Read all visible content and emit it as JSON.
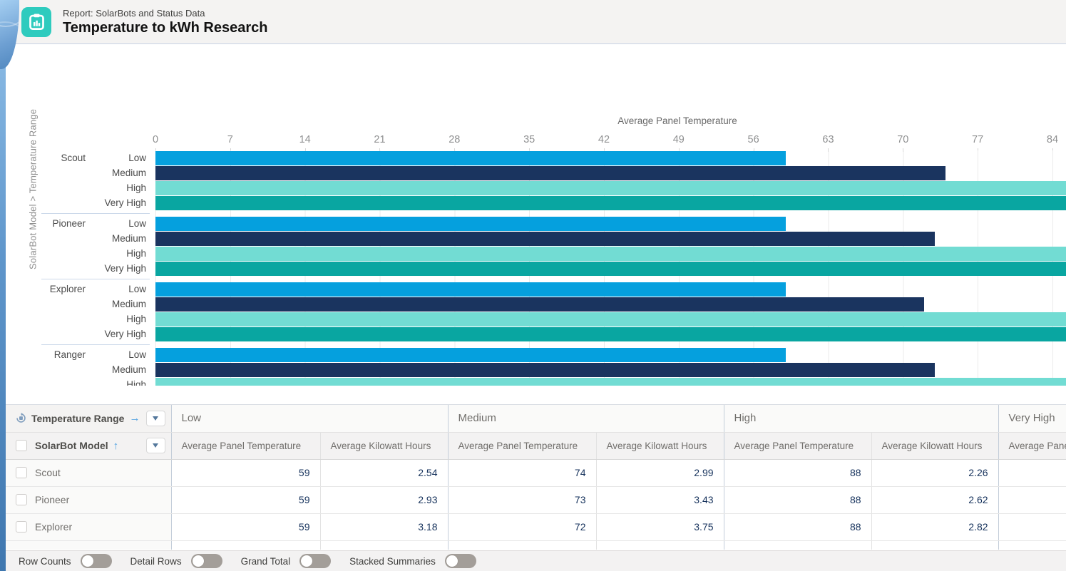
{
  "header": {
    "report_type": "Report: SolarBots and Status Data",
    "title": "Temperature to kWh Research",
    "icon_color": "#2ECBBE"
  },
  "chart_data": {
    "type": "bar",
    "orientation": "horizontal",
    "title": "Average Panel Temperature",
    "group_axis_label": "SolarBot Model > Temperature Range",
    "x_ticks": [
      0,
      7,
      14,
      21,
      28,
      35,
      42,
      49,
      56,
      63,
      70,
      77,
      84
    ],
    "x_visible_range": [
      0,
      85
    ],
    "grid": true,
    "series_colors": {
      "Low": "#05A0DE",
      "Medium": "#1A345F",
      "High": "#72DCD3",
      "Very High": "#09A6A1"
    },
    "groups": [
      {
        "model": "Scout",
        "bars": [
          {
            "range": "Low",
            "value": 59
          },
          {
            "range": "Medium",
            "value": 74
          },
          {
            "range": "High",
            "value": 88,
            "clipped_right": true
          },
          {
            "range": "Very High",
            "value": null,
            "clipped_right": true
          }
        ]
      },
      {
        "model": "Pioneer",
        "bars": [
          {
            "range": "Low",
            "value": 59
          },
          {
            "range": "Medium",
            "value": 73
          },
          {
            "range": "High",
            "value": 88,
            "clipped_right": true
          },
          {
            "range": "Very High",
            "value": null,
            "clipped_right": true
          }
        ]
      },
      {
        "model": "Explorer",
        "bars": [
          {
            "range": "Low",
            "value": 59
          },
          {
            "range": "Medium",
            "value": 72
          },
          {
            "range": "High",
            "value": 88,
            "clipped_right": true
          },
          {
            "range": "Very High",
            "value": null,
            "clipped_right": true
          }
        ]
      },
      {
        "model": "Ranger",
        "bars": [
          {
            "range": "Low",
            "value": 59
          },
          {
            "range": "Medium",
            "value": 73
          },
          {
            "range": "High",
            "value": 88,
            "clipped_right": true,
            "clipped_bottom": true
          }
        ]
      }
    ]
  },
  "table": {
    "pivot_header": {
      "label": "Temperature Range",
      "direction_arrow": "→"
    },
    "row_header": {
      "label": "SolarBot Model",
      "sort_arrow": "↑"
    },
    "column_groups": [
      {
        "label": "Low"
      },
      {
        "label": "Medium"
      },
      {
        "label": "High"
      },
      {
        "label": "Very High",
        "clipped": true
      }
    ],
    "measures": [
      "Average Panel Temperature",
      "Average Kilowatt Hours"
    ],
    "rows": [
      {
        "model": "Scout",
        "values": [
          "59",
          "2.54",
          "74",
          "2.99",
          "88",
          "2.26",
          "",
          ""
        ]
      },
      {
        "model": "Pioneer",
        "values": [
          "59",
          "2.93",
          "73",
          "3.43",
          "88",
          "2.62",
          "",
          ""
        ]
      },
      {
        "model": "Explorer",
        "values": [
          "59",
          "3.18",
          "72",
          "3.75",
          "88",
          "2.82",
          "",
          ""
        ]
      }
    ]
  },
  "footer": {
    "toggles": [
      {
        "label": "Row Counts",
        "on": false
      },
      {
        "label": "Detail Rows",
        "on": false
      },
      {
        "label": "Grand Total",
        "on": false
      },
      {
        "label": "Stacked Summaries",
        "on": false
      }
    ]
  }
}
